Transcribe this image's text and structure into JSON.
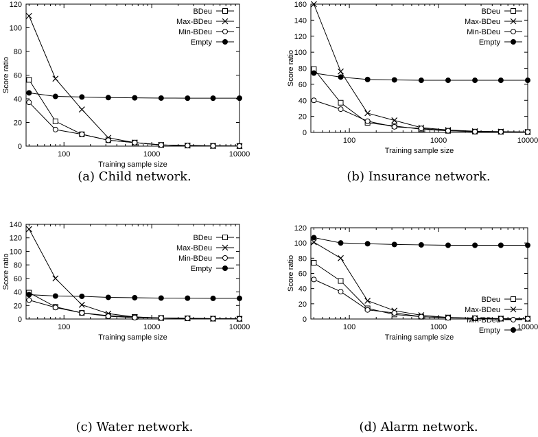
{
  "colors": {
    "stroke": "#000000",
    "background": "#ffffff"
  },
  "chart_data": [
    {
      "type": "line",
      "caption": "(a) Child network.",
      "xlabel": "Training sample size",
      "ylabel": "Score ratio",
      "xscale": "log",
      "xlim": [
        37,
        10000
      ],
      "ylim": [
        0,
        120
      ],
      "xticks": [
        100,
        1000,
        10000
      ],
      "xtick_labels": [
        "100",
        "1000",
        "10000"
      ],
      "yticks": [
        0,
        20,
        40,
        60,
        80,
        100,
        120
      ],
      "ytick_labels": [
        "0",
        "20",
        "40",
        "60",
        "80",
        "100",
        "120"
      ],
      "legend_position": "top-right",
      "x": [
        40,
        80,
        160,
        320,
        640,
        1280,
        2560,
        5000,
        10000
      ],
      "series": [
        {
          "name": "BDeu",
          "marker": "square",
          "values": [
            56,
            21,
            10,
            5,
            3,
            1,
            0.5,
            0.2,
            0.1
          ]
        },
        {
          "name": "Max-BDeu",
          "marker": "cross",
          "values": [
            110,
            57,
            31,
            7,
            3,
            1,
            0.5,
            0.2,
            0.1
          ]
        },
        {
          "name": "Min-BDeu",
          "marker": "circle",
          "values": [
            37,
            14,
            10,
            5,
            3,
            1,
            0.5,
            0.2,
            0.1
          ]
        },
        {
          "name": "Empty",
          "marker": "dot",
          "values": [
            45,
            42,
            41.5,
            41,
            40.8,
            40.6,
            40.5,
            40.5,
            40.5
          ]
        }
      ]
    },
    {
      "type": "line",
      "caption": "(b) Insurance network.",
      "xlabel": "Training sample size",
      "ylabel": "Score ratio",
      "xscale": "log",
      "xlim": [
        37,
        10000
      ],
      "ylim": [
        0,
        160
      ],
      "xticks": [
        100,
        1000,
        10000
      ],
      "xtick_labels": [
        "100",
        "1000",
        "10000"
      ],
      "yticks": [
        0,
        20,
        40,
        60,
        80,
        100,
        120,
        140,
        160
      ],
      "ytick_labels": [
        "0",
        "20",
        "40",
        "60",
        "80",
        "100",
        "120",
        "140",
        "160"
      ],
      "legend_position": "top-right",
      "x": [
        40,
        80,
        160,
        320,
        640,
        1280,
        2560,
        5000,
        10000
      ],
      "series": [
        {
          "name": "BDeu",
          "marker": "square",
          "values": [
            79,
            37,
            12,
            8,
            4,
            2,
            1,
            0.8,
            0.5
          ]
        },
        {
          "name": "Max-BDeu",
          "marker": "cross",
          "values": [
            160,
            76,
            24,
            15,
            6,
            3,
            1.5,
            1,
            0.5
          ]
        },
        {
          "name": "Min-BDeu",
          "marker": "circle",
          "values": [
            40,
            29,
            14,
            7,
            5,
            2,
            1,
            0.8,
            0.5
          ]
        },
        {
          "name": "Empty",
          "marker": "dot",
          "values": [
            74,
            69,
            66,
            65.5,
            65,
            65,
            65,
            65,
            65
          ]
        }
      ]
    },
    {
      "type": "line",
      "caption": "(c) Water network.",
      "xlabel": "Training sample size",
      "ylabel": "Score ratio",
      "xscale": "log",
      "xlim": [
        37,
        10000
      ],
      "ylim": [
        0,
        140
      ],
      "xticks": [
        100,
        1000,
        10000
      ],
      "xtick_labels": [
        "100",
        "1000",
        "10000"
      ],
      "yticks": [
        0,
        20,
        40,
        60,
        80,
        100,
        120,
        140
      ],
      "ytick_labels": [
        "0",
        "20",
        "40",
        "60",
        "80",
        "100",
        "120",
        "140"
      ],
      "legend_position": "top-right",
      "x": [
        40,
        80,
        160,
        320,
        640,
        1280,
        2560,
        5000,
        10000
      ],
      "series": [
        {
          "name": "BDeu",
          "marker": "square",
          "values": [
            39,
            18,
            9,
            5,
            3,
            1.5,
            1,
            0.5,
            0.3
          ]
        },
        {
          "name": "Max-BDeu",
          "marker": "cross",
          "values": [
            133,
            60,
            21,
            8,
            3,
            1.5,
            1,
            0.5,
            0.3
          ]
        },
        {
          "name": "Min-BDeu",
          "marker": "circle",
          "values": [
            28,
            17,
            9,
            4,
            2,
            1.5,
            1,
            0.5,
            0.3
          ]
        },
        {
          "name": "Empty",
          "marker": "dot",
          "values": [
            36,
            34,
            33.5,
            32,
            31.5,
            31,
            30.8,
            30.5,
            30.5
          ]
        }
      ]
    },
    {
      "type": "line",
      "caption": "(d) Alarm network.",
      "xlabel": "Training sample size",
      "ylabel": "Score ratio",
      "xscale": "log",
      "xlim": [
        37,
        10000
      ],
      "ylim": [
        0,
        120
      ],
      "xticks": [
        100,
        1000,
        10000
      ],
      "xtick_labels": [
        "100",
        "1000",
        "10000"
      ],
      "yticks": [
        0,
        20,
        40,
        60,
        80,
        100,
        120
      ],
      "ytick_labels": [
        "0",
        "20",
        "40",
        "60",
        "80",
        "100",
        "120"
      ],
      "legend_position": "center-right",
      "x": [
        40,
        80,
        160,
        320,
        640,
        1280,
        2560,
        5000,
        10000
      ],
      "series": [
        {
          "name": "BDeu",
          "marker": "square",
          "values": [
            74,
            50,
            14,
            6,
            3,
            2,
            1,
            0.5,
            0.3
          ]
        },
        {
          "name": "Max-BDeu",
          "marker": "cross",
          "values": [
            101,
            80,
            24,
            11,
            5,
            2,
            1,
            0.5,
            0.3
          ]
        },
        {
          "name": "Min-BDeu",
          "marker": "circle",
          "values": [
            52,
            36,
            12,
            8,
            3,
            1.5,
            1,
            0.5,
            0.3
          ]
        },
        {
          "name": "Empty",
          "marker": "dot",
          "values": [
            107,
            100,
            99,
            98,
            97.5,
            97,
            97,
            97,
            97
          ]
        }
      ]
    }
  ]
}
